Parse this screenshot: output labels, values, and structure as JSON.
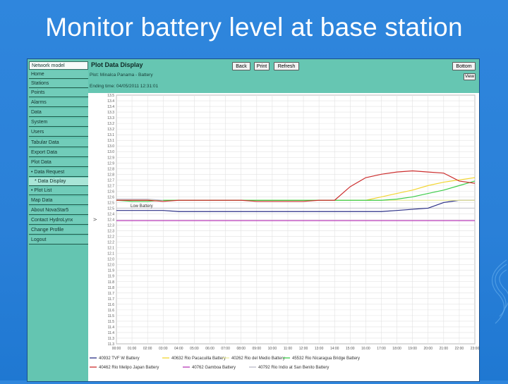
{
  "slide": {
    "title": "Monitor battery level at base station"
  },
  "sidebar": {
    "items": [
      {
        "label": "Network model",
        "top": true
      },
      {
        "label": "Home"
      },
      {
        "label": "Stations"
      },
      {
        "label": "Points"
      },
      {
        "label": "Alarms"
      },
      {
        "label": "Data"
      },
      {
        "label": "System"
      },
      {
        "label": "Users"
      },
      {
        "label": "Tabular Data"
      },
      {
        "label": "Export Data"
      },
      {
        "label": "Plot Data"
      },
      {
        "label": "• Data Request"
      },
      {
        "label": "* Data Display",
        "active": true
      },
      {
        "label": "• Plot List"
      },
      {
        "label": "Map Data"
      },
      {
        "label": "About NovaStar5"
      },
      {
        "label": "Contact HydroLynx"
      },
      {
        "label": "Change Profile"
      },
      {
        "label": "Logout"
      }
    ]
  },
  "header": {
    "page_title": "Plot Data Display",
    "plot_line": "Plot:     Minalca Panama - Battery",
    "ending_time": "Ending time:  04/05/2011 12:31:01",
    "buttons": {
      "back": "Back",
      "print": "Print",
      "refresh": "Refresh",
      "bottom": "Bottom",
      "view": "View"
    }
  },
  "chart_data": {
    "type": "line",
    "ylabel": "V",
    "ylim": [
      11.3,
      13.5
    ],
    "y_ticks": [
      "13.5",
      "13.4",
      "13.4",
      "13.3",
      "13.3",
      "13.2",
      "13.2",
      "13.1",
      "13.1",
      "13.0",
      "13.0",
      "12.9",
      "12.9",
      "12.8",
      "12.8",
      "12.7",
      "12.7",
      "12.6",
      "12.6",
      "12.5",
      "12.5",
      "12.4",
      "12.4",
      "12.3",
      "12.3",
      "12.2",
      "12.2",
      "12.1",
      "12.1",
      "12.0",
      "12.0",
      "11.9",
      "11.9",
      "11.8",
      "11.8",
      "11.7",
      "11.7",
      "11.6",
      "11.6",
      "11.5",
      "11.5",
      "11.4",
      "11.4",
      "11.3",
      "11.3"
    ],
    "x_ticks": [
      "00:00",
      "01:00",
      "02:00",
      "03:00",
      "04:00",
      "05:00",
      "06:00",
      "07:00",
      "08:00",
      "09:00",
      "10:00",
      "11:00",
      "12:00",
      "13:00",
      "14:00",
      "15:00",
      "16:00",
      "17:00",
      "18:00",
      "19:00",
      "20:00",
      "21:00",
      "22:00",
      "23:00"
    ],
    "low_battery_label": "Low Battery",
    "low_battery_value": 12.5,
    "series": [
      {
        "name": "40932 TVF W Battery",
        "color": "#2b2f86",
        "x": [
          0,
          1,
          2,
          3,
          4,
          5,
          6,
          7,
          8,
          9,
          10,
          11,
          12,
          13,
          14,
          15,
          16,
          17,
          18,
          19,
          20,
          21,
          22,
          23
        ],
        "y": [
          12.48,
          12.48,
          12.48,
          12.48,
          12.47,
          12.47,
          12.47,
          12.47,
          12.47,
          12.47,
          12.47,
          12.47,
          12.47,
          12.47,
          12.47,
          12.47,
          12.47,
          12.47,
          12.48,
          12.49,
          12.5,
          12.55,
          12.57,
          12.57
        ]
      },
      {
        "name": "40632 Rio Pacacuilla Battery",
        "color": "#f2d533",
        "x": [
          0,
          1,
          2,
          3,
          4,
          5,
          6,
          7,
          8,
          9,
          10,
          11,
          12,
          13,
          14,
          15,
          16,
          17,
          18,
          19,
          20,
          21,
          22,
          23
        ],
        "y": [
          12.57,
          12.57,
          12.57,
          12.57,
          12.57,
          12.57,
          12.57,
          12.57,
          12.57,
          12.57,
          12.57,
          12.57,
          12.57,
          12.57,
          12.57,
          12.57,
          12.57,
          12.6,
          12.63,
          12.66,
          12.7,
          12.73,
          12.75,
          12.77
        ]
      },
      {
        "name": "40262 Rio del Medio Battery",
        "color": "#eaea9a",
        "x": [
          0,
          1,
          2,
          3,
          4,
          5,
          6,
          7,
          8,
          9,
          10,
          11,
          12,
          13,
          14,
          15,
          16,
          17,
          18,
          19,
          20,
          21,
          22,
          23
        ],
        "y": [
          12.57,
          12.57,
          12.57,
          12.57,
          12.57,
          12.57,
          12.57,
          12.57,
          12.57,
          12.57,
          12.57,
          12.57,
          12.57,
          12.57,
          12.57,
          12.57,
          12.57,
          12.57,
          12.57,
          12.57,
          12.57,
          12.57,
          12.57,
          12.57
        ]
      },
      {
        "name": "45532 Rio Nicaragua Bridge Battery",
        "color": "#3dcc4a",
        "x": [
          0,
          1,
          2,
          3,
          4,
          5,
          6,
          7,
          8,
          9,
          10,
          11,
          12,
          13,
          14,
          15,
          16,
          17,
          18,
          19,
          20,
          21,
          22,
          23
        ],
        "y": [
          12.57,
          12.56,
          12.56,
          12.57,
          12.57,
          12.57,
          12.57,
          12.57,
          12.57,
          12.57,
          12.57,
          12.57,
          12.57,
          12.57,
          12.57,
          12.57,
          12.57,
          12.57,
          12.58,
          12.6,
          12.63,
          12.66,
          12.7,
          12.74
        ]
      },
      {
        "name": "40462 Rio Melipo Japan Battery",
        "color": "#cc2e2e",
        "x": [
          0,
          1,
          2,
          3,
          4,
          5,
          6,
          7,
          8,
          9,
          10,
          11,
          12,
          13,
          14,
          15,
          16,
          17,
          18,
          19,
          20,
          21,
          22,
          23
        ],
        "y": [
          12.57,
          12.57,
          12.57,
          12.56,
          12.57,
          12.57,
          12.57,
          12.57,
          12.57,
          12.56,
          12.56,
          12.56,
          12.56,
          12.57,
          12.57,
          12.69,
          12.77,
          12.8,
          12.82,
          12.83,
          12.82,
          12.81,
          12.74,
          12.72
        ]
      },
      {
        "name": "40762 Gamboa Battery",
        "color": "#b73ab7",
        "x": [
          0,
          1,
          2,
          3,
          4,
          5,
          6,
          7,
          8,
          9,
          10,
          11,
          12,
          13,
          14,
          15,
          16,
          17,
          18,
          19,
          20,
          21,
          22,
          23
        ],
        "y": [
          12.39,
          12.39,
          12.39,
          12.39,
          12.39,
          12.39,
          12.39,
          12.39,
          12.39,
          12.39,
          12.39,
          12.39,
          12.39,
          12.39,
          12.39,
          12.39,
          12.39,
          12.39,
          12.39,
          12.39,
          12.39,
          12.39,
          12.39,
          12.39
        ]
      },
      {
        "name": "40792 Rio Indio at San Benito Battery",
        "color": "#b9b9c8",
        "x": [
          0,
          1,
          2,
          3
        ],
        "y": [
          12.58,
          12.58,
          12.58,
          12.57
        ]
      }
    ],
    "legend_placement": "bottom"
  }
}
